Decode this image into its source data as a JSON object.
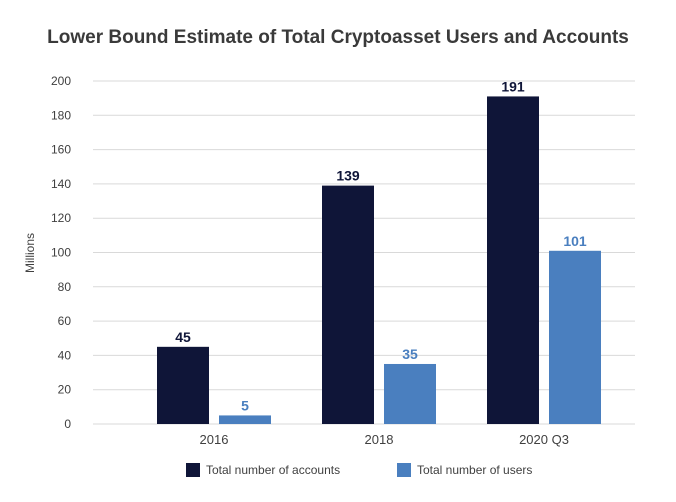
{
  "chart_data": {
    "type": "bar",
    "title": "Lower Bound Estimate of Total Cryptoasset Users and Accounts",
    "xlabel": "",
    "ylabel": "Millions",
    "categories": [
      "2016",
      "2018",
      "2020 Q3"
    ],
    "series": [
      {
        "name": "Total number of accounts",
        "values": [
          45,
          139,
          191
        ],
        "color": "#0f1538",
        "label_color": "#0f1538"
      },
      {
        "name": "Total number of users",
        "values": [
          5,
          35,
          101
        ],
        "color": "#4a7fbf",
        "label_color": "#4a7fbf"
      }
    ],
    "ylim": [
      0,
      200
    ],
    "yticks": [
      "0",
      "20",
      "40",
      "60",
      "80",
      "100",
      "120",
      "140",
      "160",
      "180",
      "200"
    ],
    "grid": true,
    "legend_position": "bottom-center"
  },
  "colors": {
    "background": "#ffffff",
    "grid": "#d9d9d9",
    "text": "#404040",
    "title": "#3a3a3a"
  }
}
